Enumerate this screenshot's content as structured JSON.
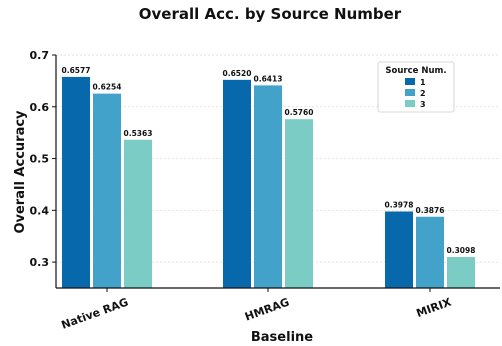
{
  "chart_data": {
    "type": "bar",
    "title": "Overall Acc. by Source Number",
    "xlabel": "Baseline",
    "ylabel": "Overall Accuracy",
    "categories": [
      "Native RAG",
      "HMRAG",
      "MIRIX"
    ],
    "series": [
      {
        "name": "1",
        "color": "#0868ac",
        "values": [
          0.6577,
          0.652,
          0.3978
        ],
        "labels": [
          "0.6577",
          "0.6520",
          "0.3978"
        ]
      },
      {
        "name": "2",
        "color": "#43a2ca",
        "values": [
          0.6254,
          0.6413,
          0.3876
        ],
        "labels": [
          "0.6254",
          "0.6413",
          "0.3876"
        ]
      },
      {
        "name": "3",
        "color": "#7bccc4",
        "values": [
          0.5363,
          0.576,
          0.3098
        ],
        "labels": [
          "0.5363",
          "0.5760",
          "0.3098"
        ]
      }
    ],
    "ylim": [
      0.25,
      0.7
    ],
    "yticks": [
      0.3,
      0.4,
      0.5,
      0.6,
      0.7
    ],
    "ytick_labels": [
      "0.3",
      "0.4",
      "0.5",
      "0.6",
      "0.7"
    ],
    "grid": true,
    "legend": {
      "title": "Source Num.",
      "position": "top-right"
    }
  }
}
